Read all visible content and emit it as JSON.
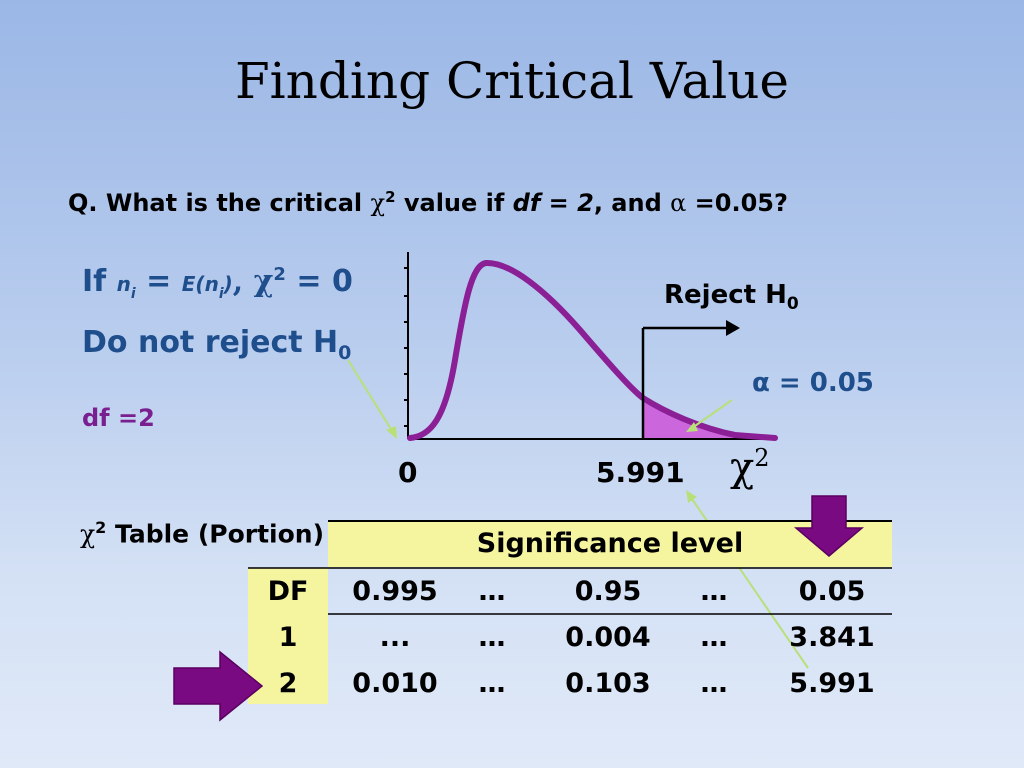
{
  "title": "Finding Critical Value",
  "question": {
    "prefix": "Q. What is the critical ",
    "chi": "χ",
    "sup": "2",
    "mid": " value if ",
    "df": "df = 2",
    "comma_and": ", and ",
    "alpha": "α",
    "alpha_value": " =0.05?"
  },
  "left_notes": {
    "if_prefix": "If ",
    "ni": "n",
    "ni_sub": "i",
    "equals": " = ",
    "eni": "E(n",
    "eni_sub": "i",
    "eni_close": ")",
    "chi_part": ", χ",
    "chi_sup": "2",
    "chi_eq": " = 0",
    "do_not_reject": "Do not reject H",
    "dnr_sub": "0",
    "df_text": "df  =2"
  },
  "graph": {
    "reject_label": "Reject H",
    "reject_sub": "0",
    "alpha_label": "α = 0.05",
    "axis_zero": "0",
    "axis_critical": "5.991",
    "axis_chi": "χ",
    "axis_chi_sup": "2",
    "curve_color": "#8a1f96",
    "shade_color": "#cc66dd",
    "arrow_color": "#b8e07a"
  },
  "table": {
    "label_chi": "χ",
    "label_sup": "2",
    "label_text": " Table (Portion)",
    "header_band": "Significance level",
    "columns": [
      "DF",
      "0.995",
      "…",
      "0.95",
      "…",
      "0.05"
    ],
    "rows": [
      [
        "1",
        "...",
        "…",
        "0.004",
        "…",
        "3.841"
      ],
      [
        "2",
        "0.010",
        "…",
        "0.103",
        "…",
        "5.991"
      ]
    ],
    "highlight_color": "#f5f5a0",
    "pointer_color": "#7a0a82"
  }
}
